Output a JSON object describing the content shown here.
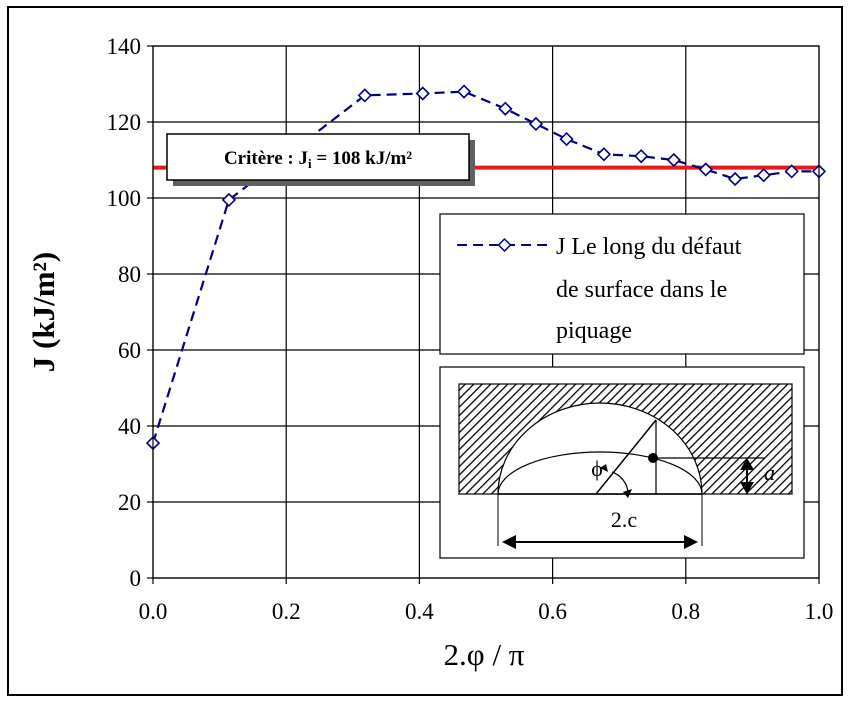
{
  "chart_data": {
    "type": "line",
    "xlabel": "2.φ / π",
    "ylabel": "J (kJ/m²)",
    "xlim": [
      0,
      1
    ],
    "ylim": [
      0,
      140
    ],
    "x_ticks": [
      "0.0",
      "0.2",
      "0.4",
      "0.6",
      "0.8",
      "1.0"
    ],
    "y_ticks": [
      "0",
      "20",
      "40",
      "60",
      "80",
      "100",
      "120",
      "140"
    ],
    "grid": true,
    "legend_position": "middle-right",
    "series": [
      {
        "name": "J Le long du défaut de surface dans le piquage",
        "color": "#000080",
        "line_style": "dashed",
        "marker": "diamond-open",
        "x": [
          0.0,
          0.114,
          0.318,
          0.405,
          0.467,
          0.529,
          0.575,
          0.621,
          0.677,
          0.733,
          0.782,
          0.83,
          0.874,
          0.917,
          0.959,
          1.0
        ],
        "y": [
          35.5,
          99.5,
          127.0,
          127.5,
          128.0,
          123.5,
          119.5,
          115.5,
          111.5,
          111.0,
          110.0,
          107.5,
          105.0,
          106.0,
          107.0,
          107.0
        ]
      }
    ],
    "criterion": {
      "value": 108,
      "color": "#e41a1c",
      "label_prefix": "Critère : J",
      "label_sub": "i",
      "label_suffix": " = 108 kJ/m²"
    },
    "legend_lines": [
      "J Le long du défaut",
      "de surface dans le",
      "piquage"
    ],
    "inset": {
      "dim_label": "2.c",
      "depth_label": "a",
      "angle_label": "ϕ"
    }
  }
}
